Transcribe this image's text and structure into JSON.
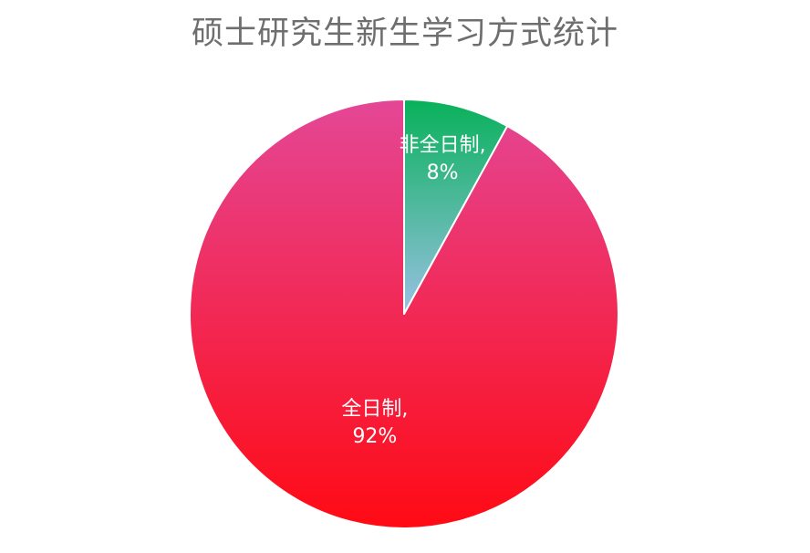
{
  "chart_data": {
    "type": "pie",
    "title": "硕士研究生新生学习方式统计",
    "categories": [
      "非全日制",
      "全日制"
    ],
    "values": [
      8,
      92
    ],
    "value_suffix": "%",
    "label_separator": ",",
    "start_angle": "12 o'clock",
    "direction": "clockwise",
    "legend": "none",
    "slice_colors": [
      {
        "top": "#08b15a",
        "bottom": "#99c1e3"
      },
      {
        "top": "#e44796",
        "bottom": "#ff0a14"
      }
    ],
    "border_color": "#ffffff"
  }
}
